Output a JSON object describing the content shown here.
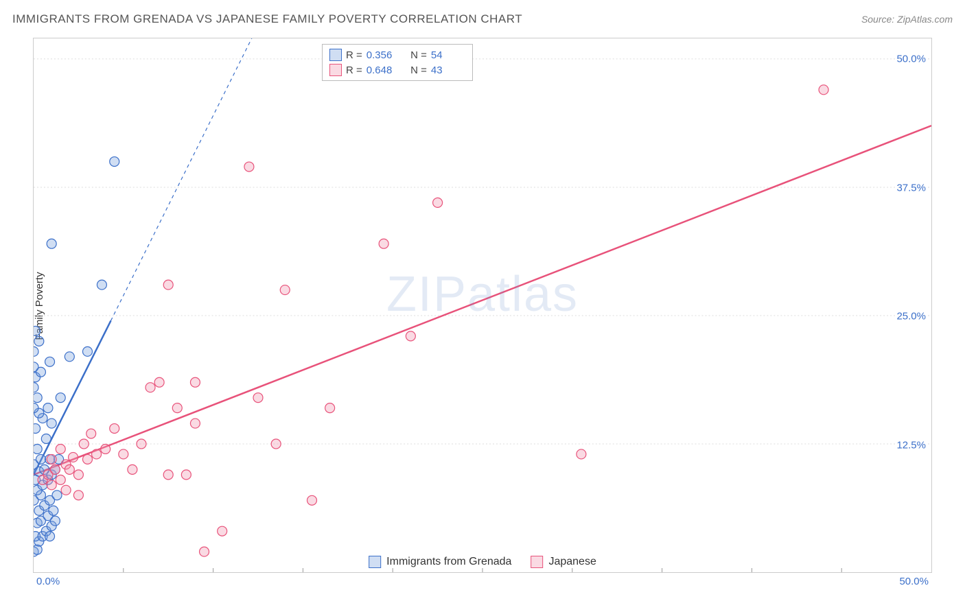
{
  "title": "IMMIGRANTS FROM GRENADA VS JAPANESE FAMILY POVERTY CORRELATION CHART",
  "source": "Source: ZipAtlas.com",
  "ylabel": "Family Poverty",
  "watermark": "ZIPatlas",
  "chart": {
    "type": "scatter",
    "xlim": [
      0,
      50
    ],
    "ylim": [
      0,
      52
    ],
    "x_origin_label": "0.0%",
    "x_max_label": "50.0%",
    "y_ticks": [
      {
        "v": 12.5,
        "label": "12.5%"
      },
      {
        "v": 25.0,
        "label": "25.0%"
      },
      {
        "v": 37.5,
        "label": "37.5%"
      },
      {
        "v": 50.0,
        "label": "50.0%"
      }
    ],
    "x_tick_positions": [
      5,
      10,
      15,
      20,
      25,
      30,
      35,
      40,
      45
    ],
    "grid_color": "#dddddd",
    "background": "#ffffff",
    "marker_radius": 7,
    "series": [
      {
        "name": "Immigrants from Grenada",
        "stroke": "#3b6fc9",
        "fill": "rgba(120,160,220,0.35)",
        "R": "0.356",
        "N": "54",
        "trend": {
          "x1": 0,
          "y1": 9.5,
          "x2": 4.3,
          "y2": 24.5,
          "dash_to_x": 13.0,
          "dash_to_y": 55
        },
        "points": [
          [
            0.0,
            2.0
          ],
          [
            0.2,
            2.2
          ],
          [
            0.3,
            3.0
          ],
          [
            0.1,
            3.5
          ],
          [
            0.5,
            3.5
          ],
          [
            0.7,
            4.0
          ],
          [
            0.9,
            3.5
          ],
          [
            0.2,
            4.8
          ],
          [
            0.4,
            5.0
          ],
          [
            1.0,
            4.5
          ],
          [
            0.8,
            5.5
          ],
          [
            1.2,
            5.0
          ],
          [
            0.3,
            6.0
          ],
          [
            0.6,
            6.5
          ],
          [
            1.1,
            6.0
          ],
          [
            0.0,
            7.0
          ],
          [
            0.4,
            7.5
          ],
          [
            0.9,
            7.0
          ],
          [
            0.2,
            8.0
          ],
          [
            1.3,
            7.5
          ],
          [
            0.5,
            8.5
          ],
          [
            0.1,
            9.0
          ],
          [
            0.8,
            9.0
          ],
          [
            0.3,
            9.8
          ],
          [
            1.0,
            9.5
          ],
          [
            0.6,
            10.0
          ],
          [
            0.0,
            10.5
          ],
          [
            1.2,
            10.0
          ],
          [
            0.4,
            11.0
          ],
          [
            0.9,
            11.0
          ],
          [
            0.2,
            12.0
          ],
          [
            1.4,
            11.0
          ],
          [
            0.7,
            13.0
          ],
          [
            0.1,
            14.0
          ],
          [
            1.0,
            14.5
          ],
          [
            0.5,
            15.0
          ],
          [
            0.3,
            15.5
          ],
          [
            0.0,
            16.0
          ],
          [
            0.8,
            16.0
          ],
          [
            0.2,
            17.0
          ],
          [
            0.0,
            18.0
          ],
          [
            1.5,
            17.0
          ],
          [
            0.1,
            19.0
          ],
          [
            0.4,
            19.5
          ],
          [
            0.0,
            20.0
          ],
          [
            0.9,
            20.5
          ],
          [
            0.0,
            21.5
          ],
          [
            2.0,
            21.0
          ],
          [
            0.3,
            22.5
          ],
          [
            3.0,
            21.5
          ],
          [
            0.1,
            23.5
          ],
          [
            1.0,
            32.0
          ],
          [
            3.8,
            28.0
          ],
          [
            4.5,
            40.0
          ]
        ]
      },
      {
        "name": "Japanese",
        "stroke": "#e8527a",
        "fill": "rgba(240,150,175,0.35)",
        "R": "0.648",
        "N": "43",
        "trend": {
          "x1": 0,
          "y1": 9.5,
          "x2": 50,
          "y2": 43.5
        },
        "points": [
          [
            0.5,
            9.0
          ],
          [
            0.8,
            9.5
          ],
          [
            1.0,
            8.5
          ],
          [
            1.2,
            10.0
          ],
          [
            1.5,
            9.0
          ],
          [
            1.8,
            10.5
          ],
          [
            1.0,
            11.0
          ],
          [
            2.0,
            10.0
          ],
          [
            2.2,
            11.2
          ],
          [
            2.5,
            9.5
          ],
          [
            1.5,
            12.0
          ],
          [
            3.0,
            11.0
          ],
          [
            2.8,
            12.5
          ],
          [
            3.5,
            11.5
          ],
          [
            4.0,
            12.0
          ],
          [
            3.2,
            13.5
          ],
          [
            5.0,
            11.5
          ],
          [
            4.5,
            14.0
          ],
          [
            6.0,
            12.5
          ],
          [
            1.8,
            8.0
          ],
          [
            2.5,
            7.5
          ],
          [
            5.5,
            10.0
          ],
          [
            7.5,
            9.5
          ],
          [
            8.5,
            9.5
          ],
          [
            6.5,
            18.0
          ],
          [
            7.0,
            18.5
          ],
          [
            9.0,
            14.5
          ],
          [
            8.0,
            16.0
          ],
          [
            9.0,
            18.5
          ],
          [
            9.5,
            2.0
          ],
          [
            10.5,
            4.0
          ],
          [
            12.5,
            17.0
          ],
          [
            13.5,
            12.5
          ],
          [
            14.0,
            27.5
          ],
          [
            15.5,
            7.0
          ],
          [
            16.5,
            16.0
          ],
          [
            12.0,
            39.5
          ],
          [
            19.5,
            32.0
          ],
          [
            21.0,
            23.0
          ],
          [
            22.5,
            36.0
          ],
          [
            30.5,
            11.5
          ],
          [
            44.0,
            47.0
          ],
          [
            7.5,
            28.0
          ]
        ]
      }
    ],
    "legend": {
      "items": [
        {
          "label": "Immigrants from Grenada",
          "stroke": "#3b6fc9",
          "fill": "rgba(120,160,220,0.35)"
        },
        {
          "label": "Japanese",
          "stroke": "#e8527a",
          "fill": "rgba(240,150,175,0.35)"
        }
      ]
    }
  }
}
